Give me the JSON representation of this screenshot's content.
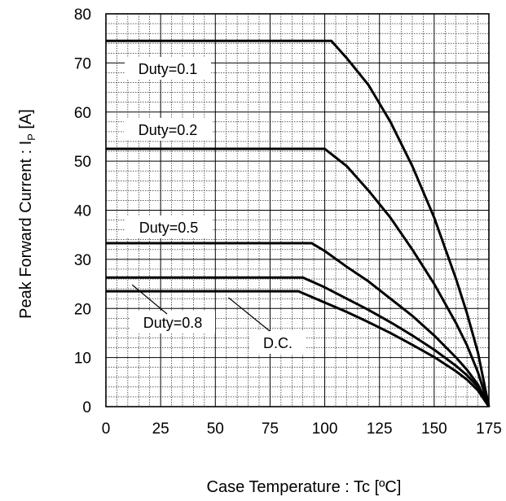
{
  "chart_data": {
    "type": "line",
    "xlabel": "Case Temperature : Tc [ºC]",
    "ylabel_main": "Peak Forward Current : I",
    "ylabel_sub": "P",
    "ylabel_unit": " [A]",
    "xlim": [
      0,
      175
    ],
    "ylim": [
      0,
      80
    ],
    "x_ticks": [
      "0",
      "25",
      "50",
      "75",
      "100",
      "125",
      "150",
      "175"
    ],
    "y_ticks": [
      "0",
      "10",
      "20",
      "30",
      "40",
      "50",
      "60",
      "70",
      "80"
    ],
    "grid": true,
    "series": [
      {
        "name": "Duty=0.1",
        "x": [
          0,
          103,
          110,
          120,
          130,
          140,
          150,
          160,
          165,
          170,
          175
        ],
        "y": [
          74.5,
          74.5,
          71,
          65.5,
          58,
          49,
          38.5,
          26,
          19,
          11,
          0
        ]
      },
      {
        "name": "Duty=0.2",
        "x": [
          0,
          100,
          110,
          120,
          130,
          140,
          150,
          160,
          165,
          170,
          175
        ],
        "y": [
          52.5,
          52.5,
          49,
          44,
          38.5,
          32,
          25,
          17,
          12.5,
          7,
          0
        ]
      },
      {
        "name": "Duty=0.5",
        "x": [
          0,
          94,
          100,
          110,
          120,
          130,
          140,
          150,
          160,
          165,
          170,
          175
        ],
        "y": [
          33.3,
          33.3,
          31.7,
          28.5,
          25.5,
          22,
          18.5,
          14.5,
          10,
          7.5,
          4.5,
          0
        ]
      },
      {
        "name": "Duty=0.8",
        "x": [
          0,
          90,
          100,
          110,
          120,
          130,
          140,
          150,
          160,
          165,
          170,
          175
        ],
        "y": [
          26.3,
          26.3,
          24.3,
          22,
          19.7,
          17.2,
          14.5,
          11.6,
          8.3,
          6.4,
          4,
          0
        ]
      },
      {
        "name": "D.C.",
        "x": [
          0,
          88,
          100,
          110,
          120,
          130,
          140,
          150,
          160,
          165,
          170,
          175
        ],
        "y": [
          23.5,
          23.5,
          21.2,
          19.3,
          17.2,
          15,
          12.6,
          10.1,
          7.2,
          5.5,
          3.3,
          0
        ]
      }
    ]
  }
}
